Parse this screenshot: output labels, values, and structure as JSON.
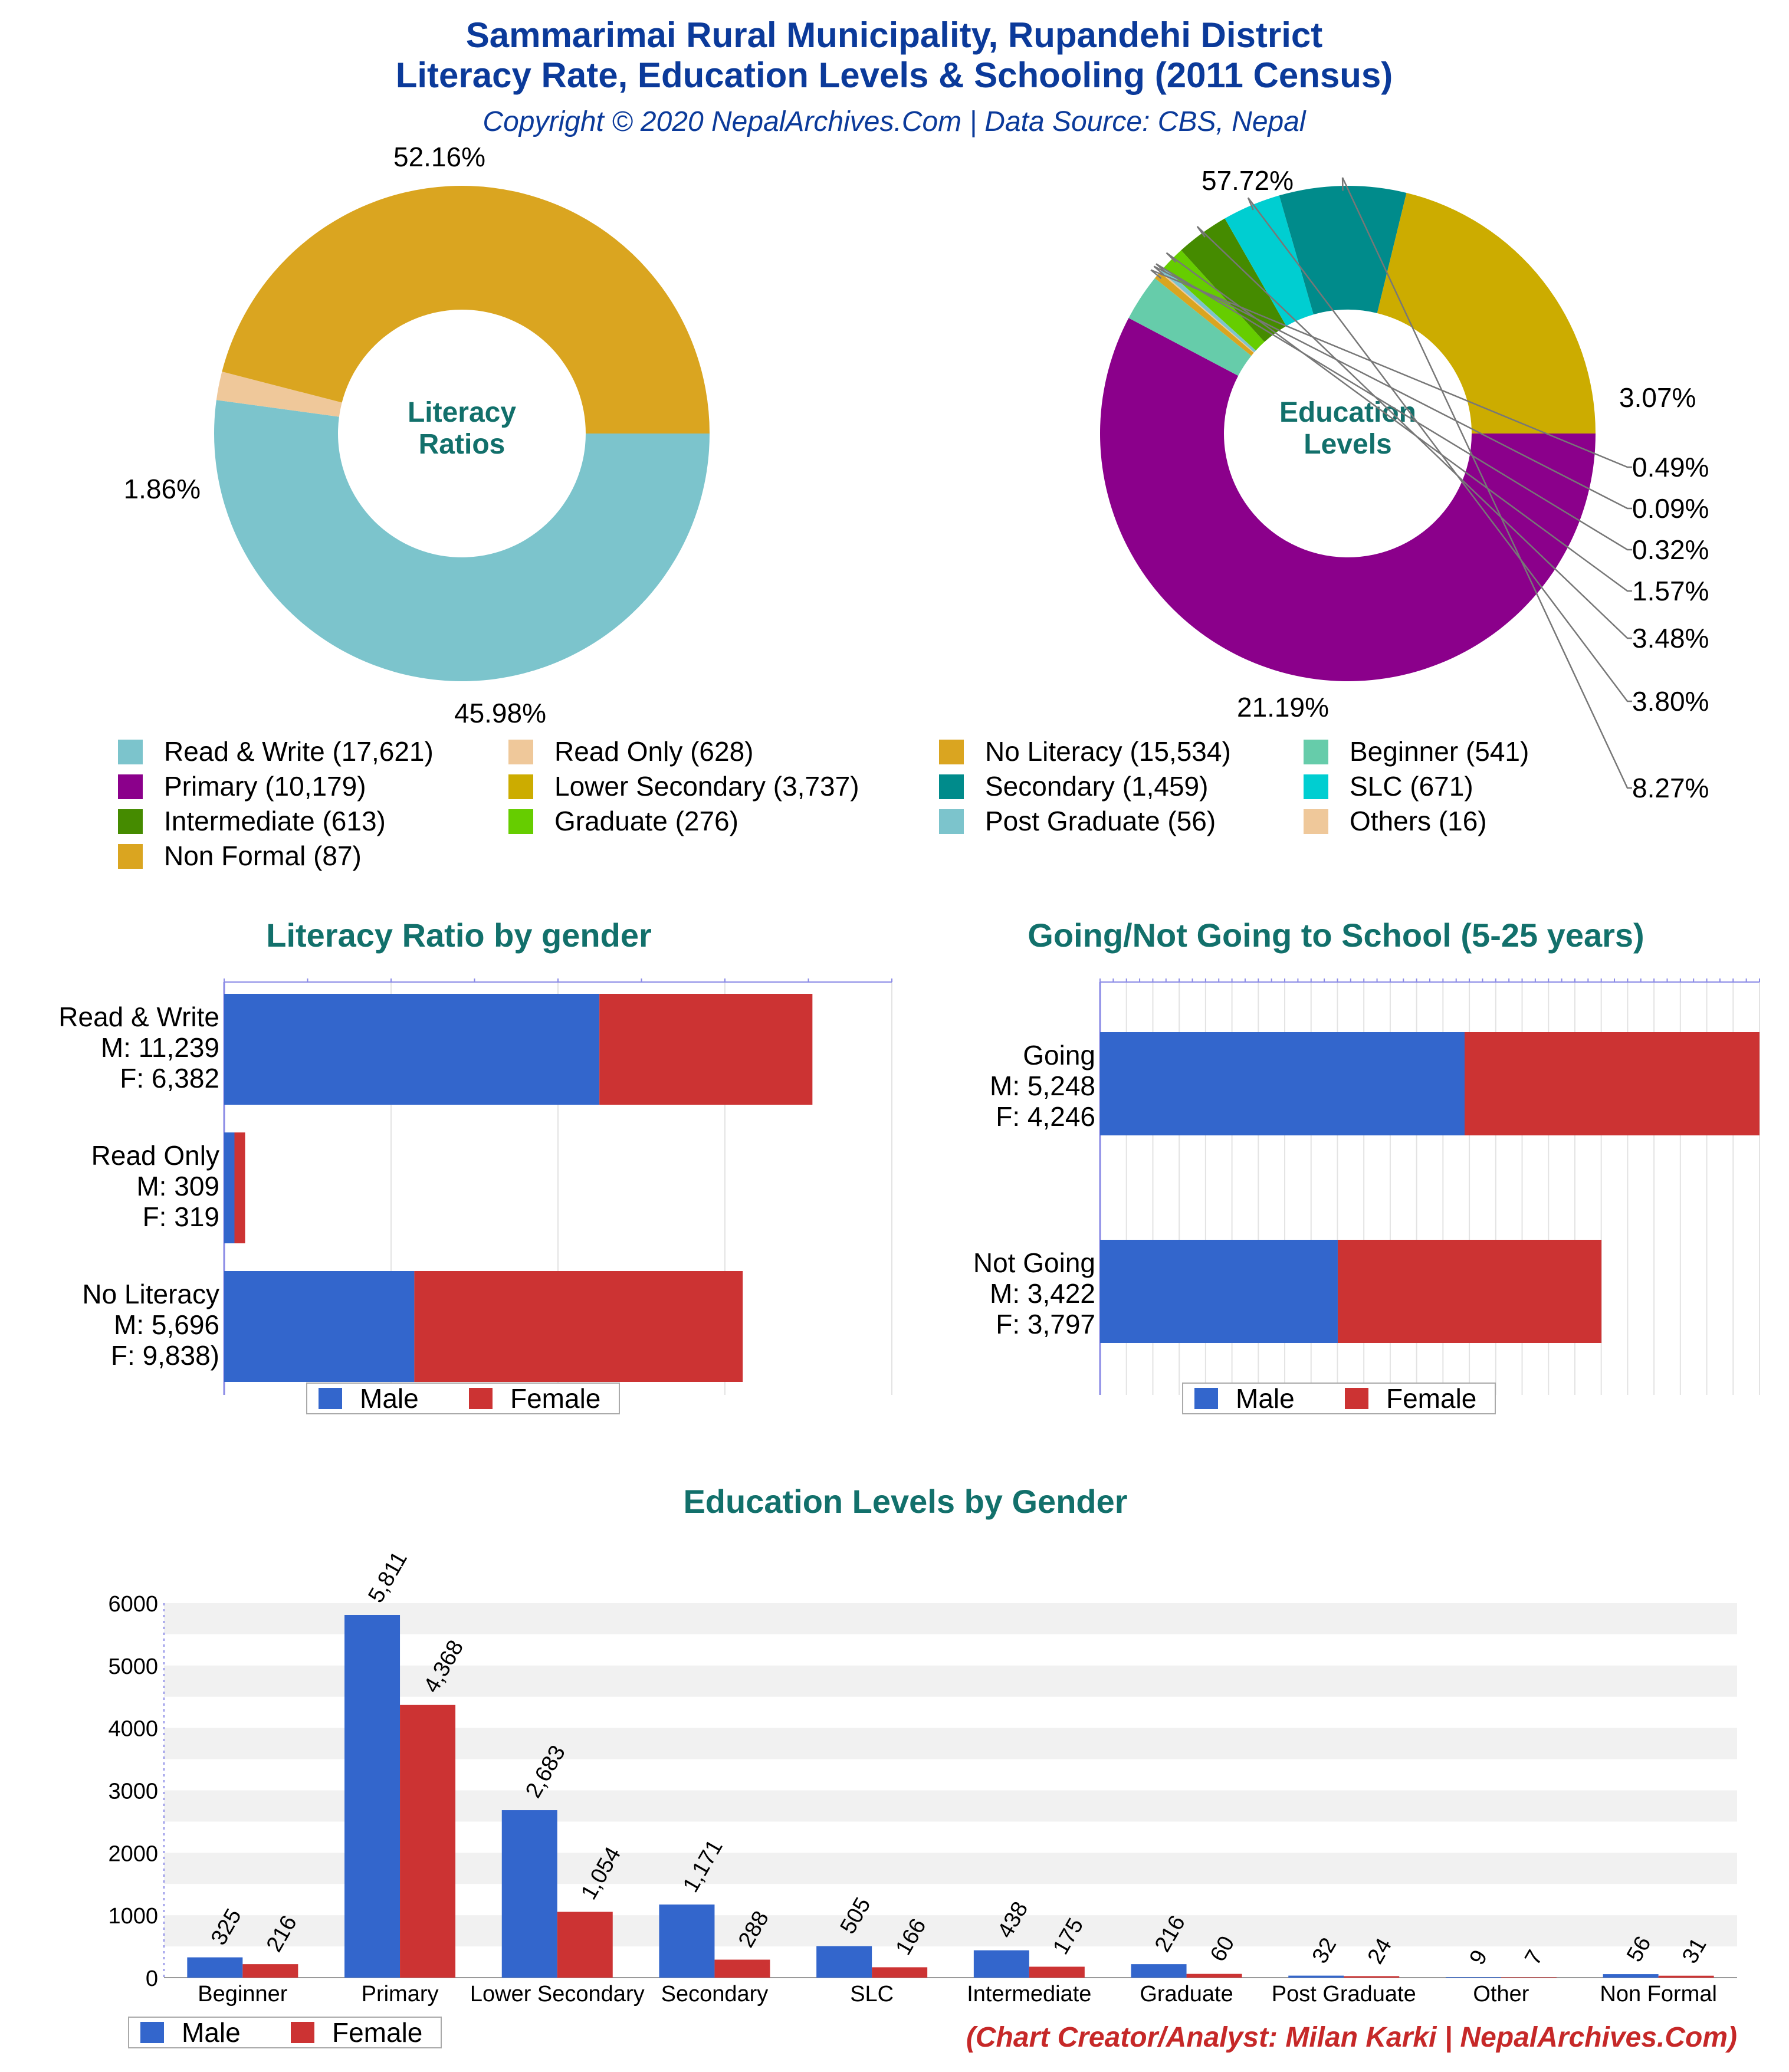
{
  "header": {
    "title_line1": "Sammarimai Rural Municipality, Rupandehi District",
    "title_line2": "Literacy Rate, Education Levels & Schooling (2011 Census)",
    "subtitle": "Copyright © 2020 NepalArchives.Com | Data Source: CBS, Nepal"
  },
  "footer": {
    "credit": "(Chart Creator/Analyst: Milan Karki | NepalArchives.Com)"
  },
  "legend_labels": {
    "male": "Male",
    "female": "Female"
  },
  "pie_legend": [
    {
      "text": "Read & Write (17,621)",
      "color": "#7cc4cc"
    },
    {
      "text": "Read Only (628)",
      "color": "#efc89a"
    },
    {
      "text": "No Literacy (15,534)",
      "color": "#daa520"
    },
    {
      "text": "Beginner (541)",
      "color": "#66ccaa"
    },
    {
      "text": "Primary (10,179)",
      "color": "#8b008b"
    },
    {
      "text": "Lower Secondary (3,737)",
      "color": "#ccac00"
    },
    {
      "text": "Secondary (1,459)",
      "color": "#008b8b"
    },
    {
      "text": "SLC (671)",
      "color": "#00ced1"
    },
    {
      "text": "Intermediate (613)",
      "color": "#458b00"
    },
    {
      "text": "Graduate (276)",
      "color": "#66cd00"
    },
    {
      "text": "Post Graduate (56)",
      "color": "#7cc4cc"
    },
    {
      "text": "Others (16)",
      "color": "#efc89a"
    },
    {
      "text": "Non Formal (87)",
      "color": "#daa520"
    }
  ],
  "chart_data": [
    {
      "type": "pie",
      "title": "Literacy Ratios",
      "categories": [
        "Read & Write",
        "Read Only",
        "No Literacy"
      ],
      "values": [
        17621,
        628,
        15534
      ],
      "percent_labels": [
        "52.16%",
        "1.86%",
        "45.98%"
      ],
      "colors": [
        "#7cc4cc",
        "#efc89a",
        "#daa520"
      ]
    },
    {
      "type": "pie",
      "title": "Education Levels",
      "categories": [
        "Primary",
        "Beginner",
        "Non Formal",
        "Others",
        "Post Graduate",
        "Graduate",
        "Intermediate",
        "SLC",
        "Secondary",
        "Lower Secondary"
      ],
      "values": [
        10179,
        541,
        87,
        16,
        56,
        276,
        613,
        671,
        1459,
        3737
      ],
      "percent_labels": [
        "57.72%",
        "3.07%",
        "0.49%",
        "0.09%",
        "0.32%",
        "1.57%",
        "3.48%",
        "3.80%",
        "8.27%",
        "21.19%"
      ],
      "colors": [
        "#8b008b",
        "#66ccaa",
        "#daa520",
        "#efc89a",
        "#7cc4cc",
        "#66cd00",
        "#458b00",
        "#00ced1",
        "#008b8b",
        "#ccac00"
      ]
    },
    {
      "type": "bar",
      "title": "Literacy Ratio by gender",
      "orientation": "horizontal-stacked",
      "categories": [
        "Read & Write",
        "Read Only",
        "No Literacy"
      ],
      "category_labels": [
        [
          "Read & Write",
          "M: 11,239",
          "F: 6,382"
        ],
        [
          "Read Only",
          "M: 309",
          "F: 319"
        ],
        [
          "No Literacy",
          "M: 5,696",
          "F: 9,838)"
        ]
      ],
      "series": [
        {
          "name": "Male",
          "values": [
            11239,
            309,
            5696
          ],
          "color": "#3366cc"
        },
        {
          "name": "Female",
          "values": [
            6382,
            319,
            9838
          ],
          "color": "#cc3333"
        }
      ],
      "xlim": [
        0,
        20000
      ]
    },
    {
      "type": "bar",
      "title": "Going/Not Going to School (5-25 years)",
      "orientation": "horizontal-stacked",
      "categories": [
        "Going",
        "Not Going"
      ],
      "category_labels": [
        [
          "Going",
          "M: 5,248",
          "F: 4,246"
        ],
        [
          "Not Going",
          "M: 3,422",
          "F: 3,797"
        ]
      ],
      "series": [
        {
          "name": "Male",
          "values": [
            5248,
            3422
          ],
          "color": "#3366cc"
        },
        {
          "name": "Female",
          "values": [
            4246,
            3797
          ],
          "color": "#cc3333"
        }
      ],
      "xlim": [
        0,
        9494
      ]
    },
    {
      "type": "bar",
      "title": "Education Levels by Gender",
      "categories": [
        "Beginner",
        "Primary",
        "Lower Secondary",
        "Secondary",
        "SLC",
        "Intermediate",
        "Graduate",
        "Post Graduate",
        "Other",
        "Non Formal"
      ],
      "series": [
        {
          "name": "Male",
          "values": [
            325,
            5811,
            2683,
            1171,
            505,
            438,
            216,
            32,
            9,
            56
          ],
          "labels": [
            "325",
            "5,811",
            "2,683",
            "1,171",
            "505",
            "438",
            "216",
            "32",
            "9",
            "56"
          ],
          "color": "#3366cc"
        },
        {
          "name": "Female",
          "values": [
            216,
            4368,
            1054,
            288,
            166,
            175,
            60,
            24,
            7,
            31
          ],
          "labels": [
            "216",
            "4,368",
            "1,054",
            "288",
            "166",
            "175",
            "60",
            "24",
            "7",
            "31"
          ],
          "color": "#cc3333"
        }
      ],
      "ylim": [
        0,
        6000
      ],
      "yticks": [
        "0",
        "1000",
        "2000",
        "3000",
        "4000",
        "5000",
        "6000"
      ]
    }
  ]
}
